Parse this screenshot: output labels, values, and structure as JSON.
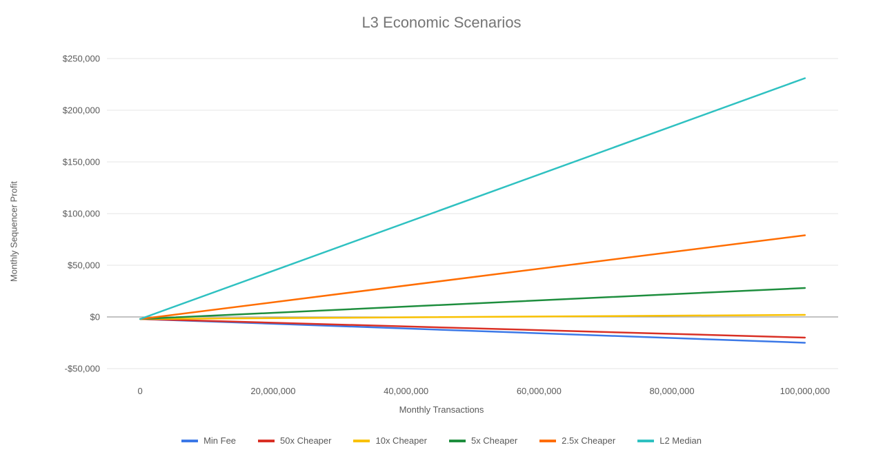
{
  "chart": {
    "type": "line",
    "title": "L3 Economic Scenarios",
    "title_fontsize": 22,
    "title_color": "#757575",
    "background_color": "#ffffff",
    "plot_background": "#ffffff",
    "grid_color": "#e6e6e6",
    "zero_line_color": "#9e9e9e",
    "axis_text_color": "#595959",
    "font_family": "Arial",
    "x_axis": {
      "title": "Monthly Transactions",
      "title_fontsize": 13,
      "min": -5000000,
      "max": 105000000,
      "ticks": [
        0,
        20000000,
        40000000,
        60000000,
        80000000,
        100000000
      ],
      "tick_labels": [
        "0",
        "20,000,000",
        "40,000,000",
        "60,000,000",
        "80,000,000",
        "100,000,000"
      ],
      "tick_fontsize": 13,
      "grid": false
    },
    "y_axis": {
      "title": "Monthly Sequencer Profit",
      "title_fontsize": 13,
      "min": -60000,
      "max": 260000,
      "ticks": [
        -50000,
        0,
        50000,
        100000,
        150000,
        200000,
        250000
      ],
      "tick_labels": [
        "-$50,000",
        "$0",
        "$50,000",
        "$100,000",
        "$150,000",
        "$200,000",
        "$250,000"
      ],
      "tick_fontsize": 13,
      "grid": true
    },
    "series": [
      {
        "name": "Min Fee",
        "color": "#3b78e7",
        "line_width": 2.5,
        "data": [
          [
            0,
            -2000
          ],
          [
            100000000,
            -25000
          ]
        ]
      },
      {
        "name": "50x Cheaper",
        "color": "#d93025",
        "line_width": 2.5,
        "data": [
          [
            0,
            -2000
          ],
          [
            100000000,
            -20000
          ]
        ]
      },
      {
        "name": "10x Cheaper",
        "color": "#f9c100",
        "line_width": 2.5,
        "data": [
          [
            0,
            -2000
          ],
          [
            100000000,
            2000
          ]
        ]
      },
      {
        "name": "5x Cheaper",
        "color": "#1e8e3e",
        "line_width": 2.5,
        "data": [
          [
            0,
            -2000
          ],
          [
            100000000,
            28000
          ]
        ]
      },
      {
        "name": "2.5x Cheaper",
        "color": "#ff6d00",
        "line_width": 2.5,
        "data": [
          [
            0,
            -2000
          ],
          [
            100000000,
            79000
          ]
        ]
      },
      {
        "name": "L2 Median",
        "color": "#2fc1c1",
        "line_width": 2.5,
        "data": [
          [
            0,
            -2000
          ],
          [
            100000000,
            231000
          ]
        ]
      }
    ],
    "legend": {
      "position": "bottom",
      "fontsize": 13,
      "swatch_width": 24,
      "swatch_height": 4
    }
  }
}
